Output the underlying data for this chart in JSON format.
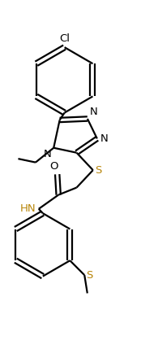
{
  "bg_color": "#ffffff",
  "line_color": "#000000",
  "sulfur_color": "#b8860b",
  "nitrogen_color": "#000000",
  "line_width": 1.6,
  "dbo": 0.008,
  "figw": 1.95,
  "figh": 4.29,
  "dpi": 100,
  "font_size": 9.5,
  "xlim": [
    0,
    0.65
  ],
  "ylim": [
    0,
    1.42
  ]
}
